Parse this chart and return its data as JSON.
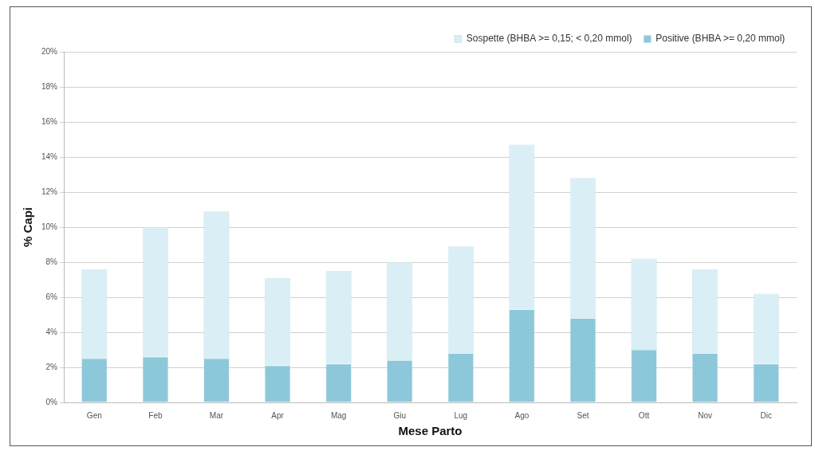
{
  "chart_data": {
    "type": "bar",
    "stacked": true,
    "xlabel": "Mese Parto",
    "ylabel": "% Capi",
    "categories": [
      "Gen",
      "Feb",
      "Mar",
      "Apr",
      "Mag",
      "Giu",
      "Lug",
      "Ago",
      "Set",
      "Ott",
      "Nov",
      "Dic"
    ],
    "series": [
      {
        "name": "Positive (BHBA >= 0,20 mmol)",
        "color": "#8cc8da",
        "values": [
          2.5,
          2.6,
          2.5,
          2.1,
          2.2,
          2.4,
          2.8,
          5.3,
          4.8,
          3.0,
          2.8,
          2.2
        ]
      },
      {
        "name": "Sospette (BHBA >= 0,15; < 0,20 mmol)",
        "color": "#daeef5",
        "values": [
          5.1,
          7.4,
          8.4,
          5.0,
          5.3,
          5.6,
          6.1,
          9.4,
          8.0,
          5.2,
          4.8,
          4.0
        ]
      }
    ],
    "ylim": [
      0,
      20
    ],
    "yticks": [
      {
        "value": 0,
        "label": "0%"
      },
      {
        "value": 2,
        "label": "2%"
      },
      {
        "value": 4,
        "label": "4%"
      },
      {
        "value": 6,
        "label": "6%"
      },
      {
        "value": 8,
        "label": "8%"
      },
      {
        "value": 10,
        "label": "10%"
      },
      {
        "value": 12,
        "label": "12%"
      },
      {
        "value": 14,
        "label": "14%"
      },
      {
        "value": 16,
        "label": "16%"
      },
      {
        "value": 18,
        "label": "18%"
      },
      {
        "value": 20,
        "label": "20%"
      }
    ],
    "grid": "y",
    "legend": "top right"
  }
}
